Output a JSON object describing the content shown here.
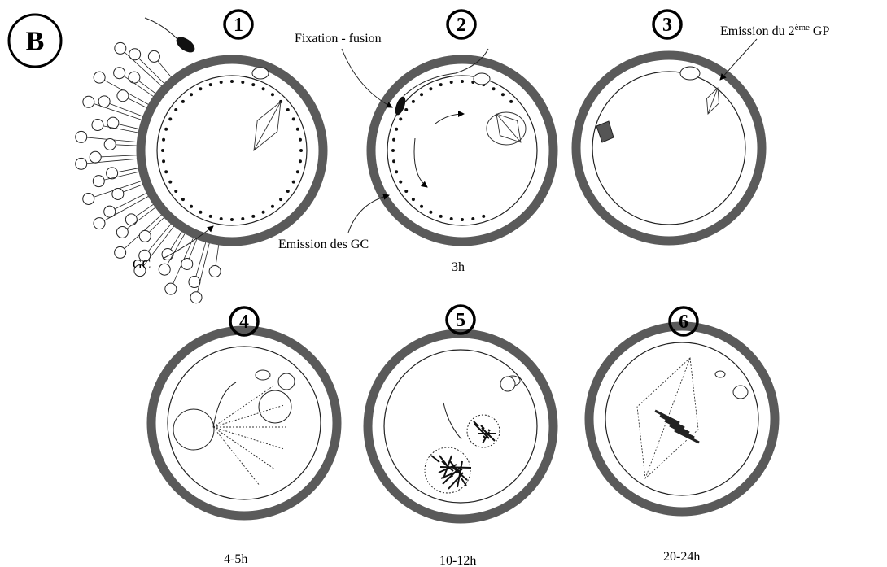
{
  "badge": "B",
  "stages": [
    {
      "number": "1"
    },
    {
      "number": "2",
      "time": "3h"
    },
    {
      "number": "3"
    },
    {
      "number": "4",
      "time": "4-5h"
    },
    {
      "number": "5",
      "time": "10-12h"
    },
    {
      "number": "6",
      "time": "20-24h"
    }
  ],
  "annotations": {
    "fixation": "Fixation - fusion",
    "polar_body": [
      "Emission du 2",
      "ème",
      " GP"
    ],
    "gc": "GC",
    "gc_emission": "Emission des GC"
  }
}
